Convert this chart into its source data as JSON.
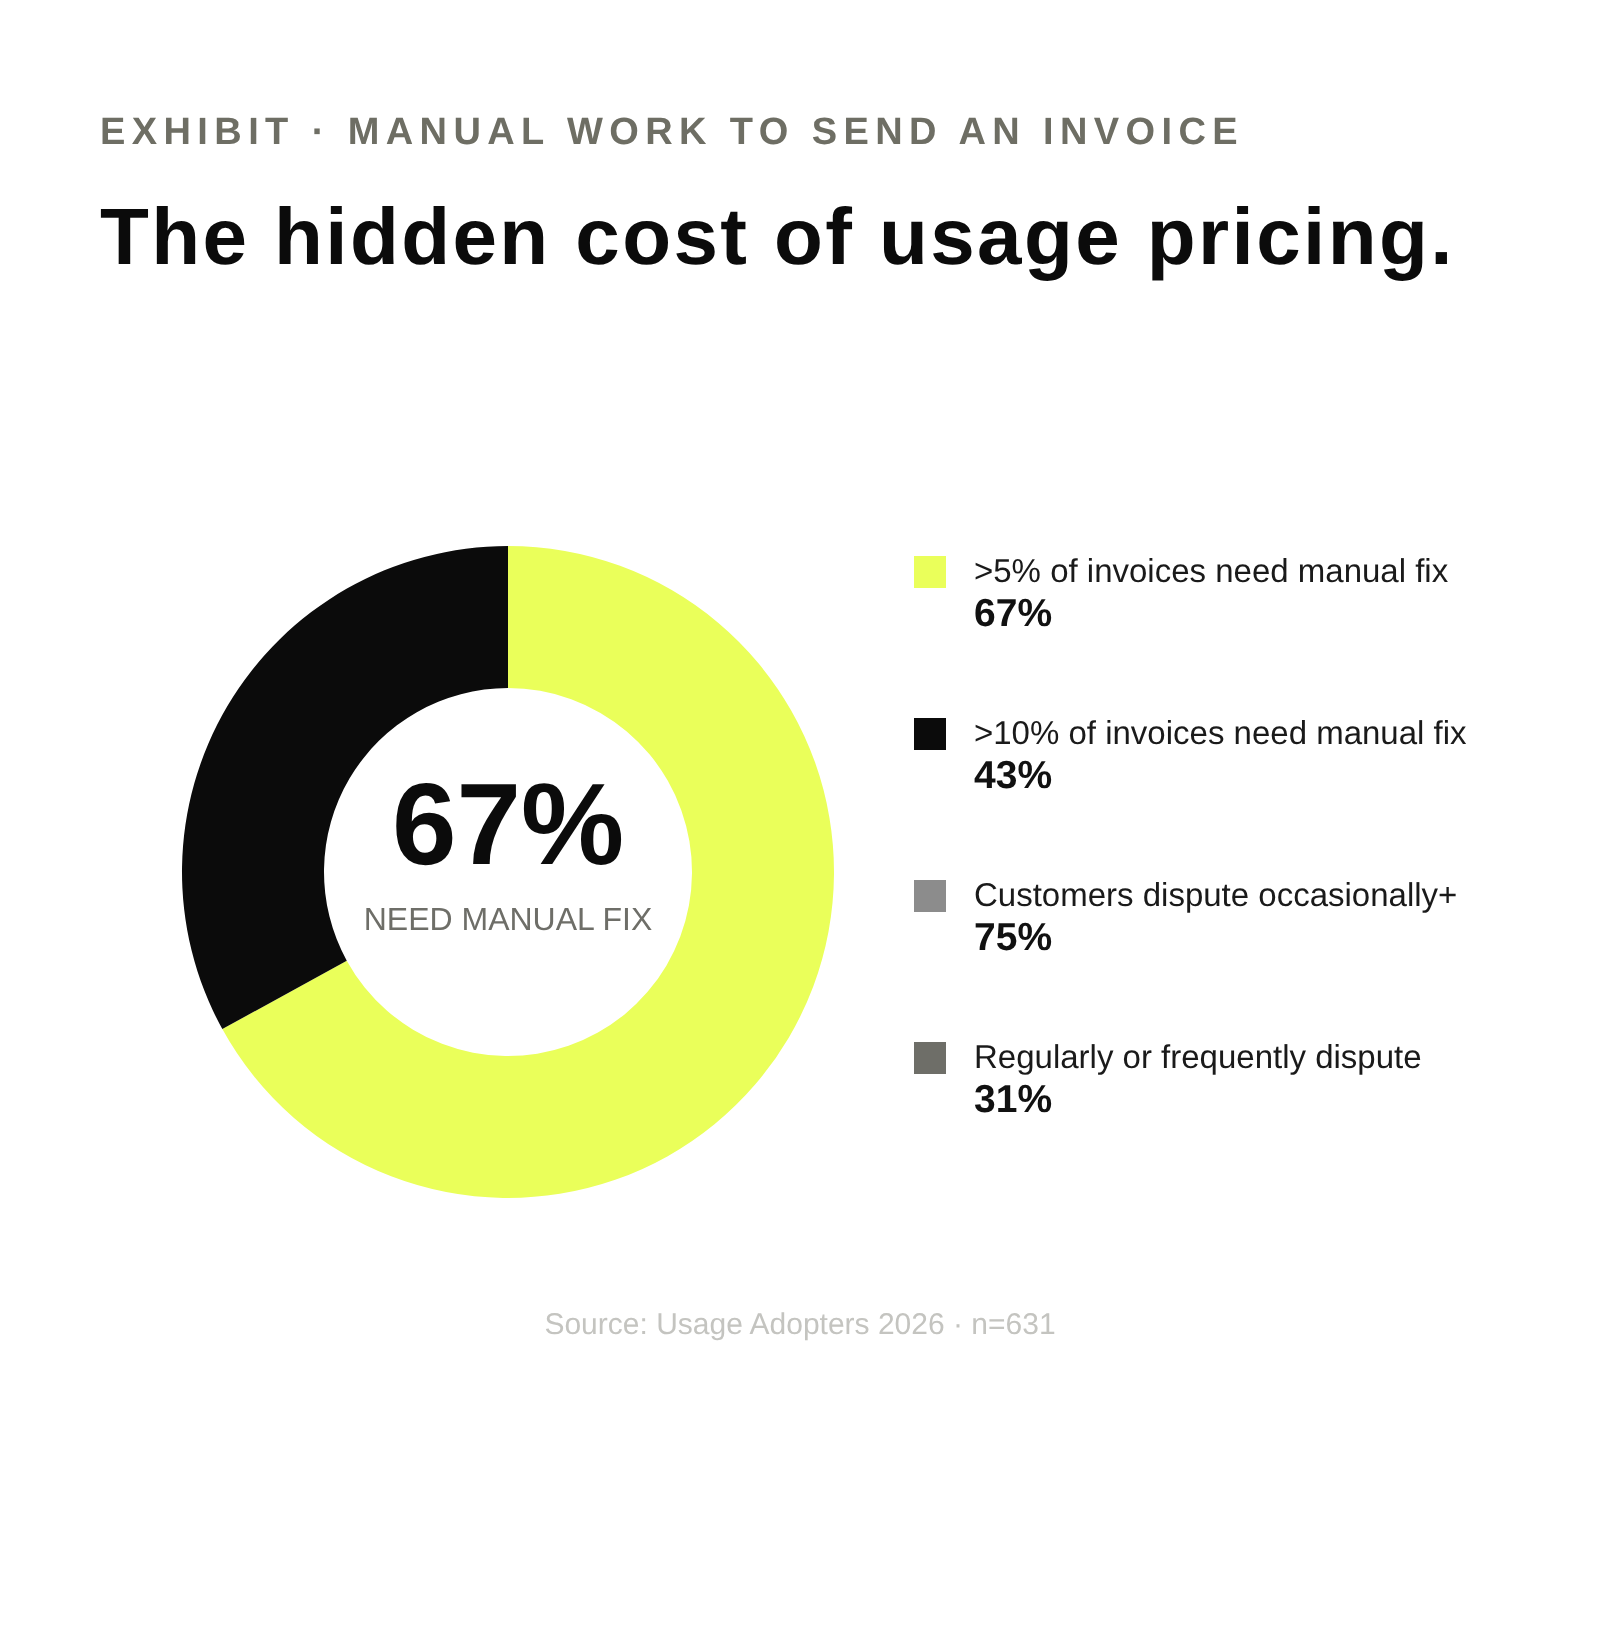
{
  "chart_data": [
    {
      "type": "donut",
      "title": "The hidden cost of usage pricing.",
      "subtitle": "EXHIBIT · MANUAL WORK TO SEND AN INVOICE",
      "categories": [
        null,
        null
      ],
      "values": [
        67,
        33
      ],
      "colors": [
        "#eaff5a",
        "#0b0b0b"
      ],
      "annotations": [
        "67%",
        "NEED MANUAL FIX",
        "Source: Usage Adopters 2026 · n=631"
      ]
    },
    {
      "type": "other",
      "categories": [
        ">5% of invoices need manual fix",
        ">10% of invoices need manual fix",
        "Customers dispute occasionally+",
        "Regularly or frequently dispute"
      ],
      "value_labels": [
        "67%",
        "43%",
        "75%",
        "31%"
      ],
      "colors": [
        "#eaff5a",
        "#0b0b0b",
        "#8c8c8c",
        "#6e6e68"
      ]
    }
  ]
}
